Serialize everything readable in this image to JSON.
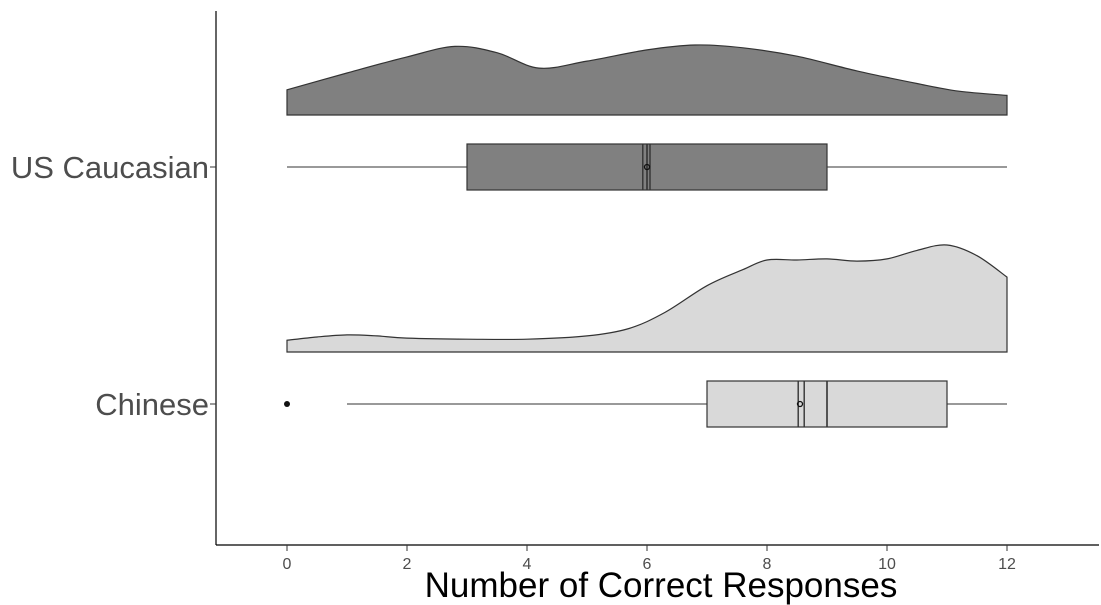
{
  "chart_data": {
    "type": "raincloud",
    "xlabel": "Number of Correct Responses",
    "ylabel": "",
    "xlim": [
      -1.2,
      13.5
    ],
    "x_ticks": [
      0,
      2,
      4,
      6,
      8,
      10,
      12
    ],
    "x_tick_labels": [
      "0",
      "2",
      "4",
      "6",
      "8",
      "10",
      "12"
    ],
    "grid": false,
    "legend": "none",
    "categories": [
      "US Caucasian",
      "Chinese"
    ],
    "series": [
      {
        "name": "US Caucasian",
        "color": "#808080",
        "box": {
          "min": 0,
          "q1": 3,
          "median": 6,
          "q3": 9,
          "max": 12,
          "mean": 6.0,
          "notch_low": 5.93,
          "notch_high": 6.05
        },
        "outliers": [],
        "density": {
          "x": [
            0,
            1,
            2,
            2.8,
            3.5,
            4.2,
            5,
            6,
            6.8,
            7.6,
            8.5,
            9.5,
            10.5,
            11.2,
            12
          ],
          "y": [
            0.36,
            0.6,
            0.83,
            0.98,
            0.89,
            0.67,
            0.77,
            0.93,
            1.0,
            0.96,
            0.84,
            0.63,
            0.45,
            0.34,
            0.28
          ]
        }
      },
      {
        "name": "Chinese",
        "color": "#d9d9d9",
        "box": {
          "min": 1,
          "q1": 7,
          "median": 9,
          "q3": 11,
          "max": 12,
          "mean": 8.55,
          "notch_low": 8.52,
          "notch_high": 8.62
        },
        "outliers": [
          0
        ],
        "density": {
          "x": [
            0,
            0.5,
            1,
            1.5,
            2,
            3,
            4,
            5,
            5.7,
            6.3,
            7,
            7.6,
            8,
            8.5,
            9,
            9.5,
            10,
            10.5,
            11,
            11.5,
            12
          ],
          "y": [
            0.11,
            0.14,
            0.16,
            0.15,
            0.13,
            0.12,
            0.12,
            0.15,
            0.22,
            0.37,
            0.62,
            0.77,
            0.86,
            0.86,
            0.87,
            0.85,
            0.87,
            0.95,
            1.0,
            0.9,
            0.7
          ]
        }
      }
    ]
  }
}
